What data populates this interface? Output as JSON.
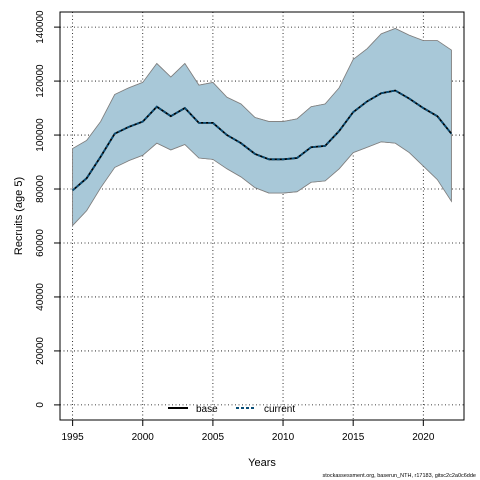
{
  "chart_data": {
    "type": "line",
    "title": "",
    "xlabel": "Years",
    "ylabel": "Recruits (age 5)",
    "xlim": [
      1995,
      2022
    ],
    "ylim": [
      0,
      140000
    ],
    "x_ticks": [
      1995,
      2000,
      2005,
      2010,
      2015,
      2020
    ],
    "y_ticks": [
      0,
      20000,
      40000,
      60000,
      80000,
      100000,
      120000,
      140000
    ],
    "grid": true,
    "legend_position": "bottom-center",
    "x": [
      1995,
      1996,
      1997,
      1998,
      1999,
      2000,
      2001,
      2002,
      2003,
      2004,
      2005,
      2006,
      2007,
      2008,
      2009,
      2010,
      2011,
      2012,
      2013,
      2014,
      2015,
      2016,
      2017,
      2018,
      2019,
      2020,
      2021,
      2022
    ],
    "series": [
      {
        "name": "base",
        "style": "solid",
        "color": "#000000",
        "values": [
          79500,
          84000,
          92000,
          100500,
          103000,
          105000,
          110500,
          107000,
          110000,
          104500,
          104500,
          100000,
          97000,
          93000,
          91000,
          91000,
          91500,
          95500,
          96000,
          101500,
          108500,
          112500,
          115500,
          116500,
          113500,
          110000,
          107000,
          100500
        ],
        "upper": [
          95000,
          98000,
          105000,
          115000,
          117500,
          119500,
          126500,
          121500,
          126500,
          118500,
          119500,
          114000,
          111500,
          106500,
          105000,
          105000,
          106000,
          110500,
          111500,
          117500,
          128000,
          132000,
          137500,
          139500,
          137000,
          135000,
          135000,
          131500
        ],
        "lower": [
          66500,
          72000,
          80500,
          88000,
          90500,
          92500,
          97000,
          94500,
          96500,
          91500,
          91000,
          87500,
          84500,
          80500,
          78500,
          78500,
          79000,
          82500,
          83000,
          87500,
          93500,
          95500,
          97500,
          97000,
          93500,
          88500,
          83500,
          75500
        ]
      },
      {
        "name": "current",
        "style": "dashed",
        "color": "#0a4f78",
        "values": [
          79500,
          84000,
          92000,
          100500,
          103000,
          105000,
          110500,
          107000,
          110000,
          104500,
          104500,
          100000,
          97000,
          93000,
          91000,
          91000,
          91500,
          95500,
          96000,
          101500,
          108500,
          112500,
          115500,
          116500,
          113500,
          110000,
          107000,
          100500
        ],
        "upper": [
          95000,
          98000,
          105000,
          115000,
          117500,
          119500,
          126500,
          121500,
          126500,
          118500,
          119500,
          114000,
          111500,
          106500,
          105000,
          105000,
          106000,
          110500,
          111500,
          117500,
          128000,
          132000,
          137500,
          139500,
          137000,
          135000,
          135000,
          131500
        ],
        "lower": [
          66500,
          72000,
          80500,
          88000,
          90500,
          92500,
          97000,
          94500,
          96500,
          91500,
          91000,
          87500,
          84500,
          80500,
          78500,
          78500,
          79000,
          82500,
          83000,
          87500,
          93500,
          95500,
          97500,
          97000,
          93500,
          88500,
          83500,
          75500
        ]
      }
    ],
    "colors": {
      "band_base": "#f4a0a0",
      "band_current": "#a8c8d8",
      "band_edge": "#808080",
      "grid": "#000000"
    }
  },
  "footer": "stockassessment.org, baserun_NTH, r17183, gitsc2c2a0c6dde"
}
